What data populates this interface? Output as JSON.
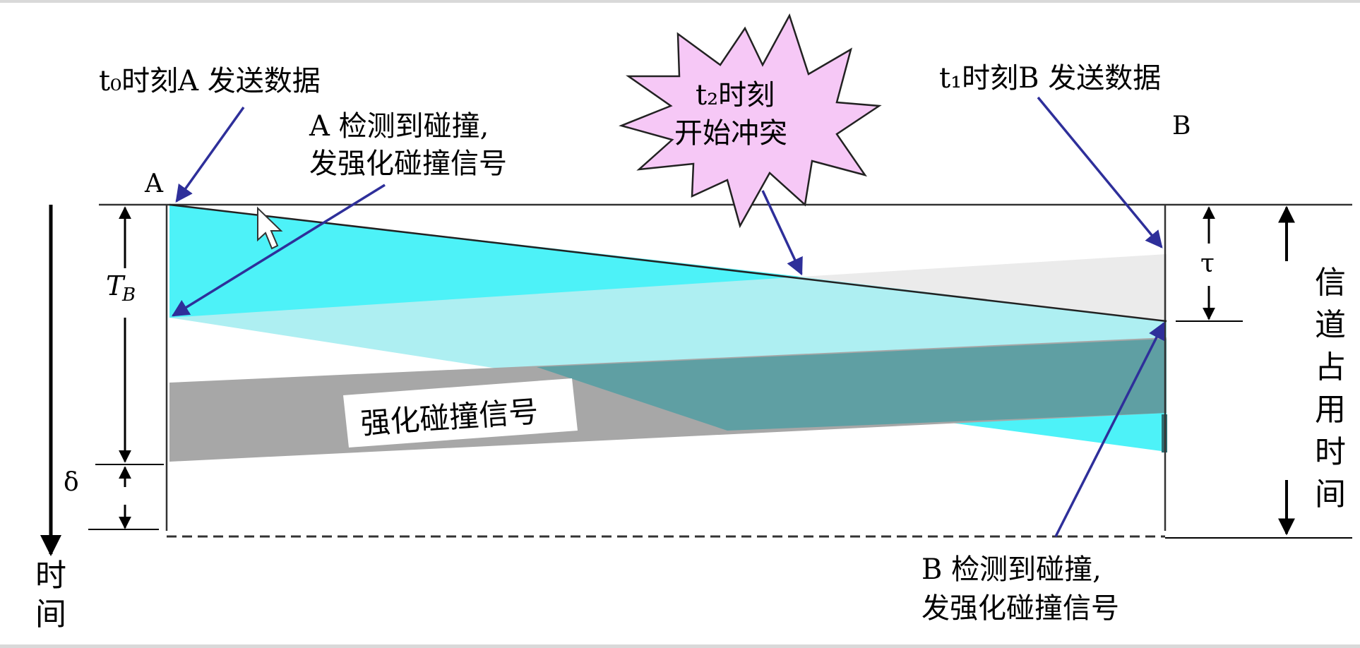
{
  "labels": {
    "a_send": "t₀时刻A 发送数据",
    "b_send": "t₁时刻B 发送数据",
    "a_detect_line1": "A 检测到碰撞,",
    "a_detect_line2": "发强化碰撞信号",
    "burst_line1": "t₂时刻",
    "burst_line2": "开始冲突",
    "station_a": "A",
    "station_b": "B",
    "tb": "T",
    "tb_sub": "B",
    "delta": "δ",
    "tau": "τ",
    "jam_box": "强化碰撞信号",
    "occupancy": [
      "信",
      "道",
      "占",
      "用",
      "时",
      "间"
    ],
    "time_axis": [
      "时",
      "间"
    ],
    "b_detect_line1": "B 检测到碰撞,",
    "b_detect_line2": "发强化碰撞信号"
  },
  "colors": {
    "cyan": "#4df2f8",
    "light_cyan": "#aeeff2",
    "gray_light": "#ebebeb",
    "gray_band": "#a7a7a7",
    "dark_teal": "#5f9fa3",
    "burst_fill": "#f6c8f6",
    "arrow_blue": "#2e2f9a"
  }
}
